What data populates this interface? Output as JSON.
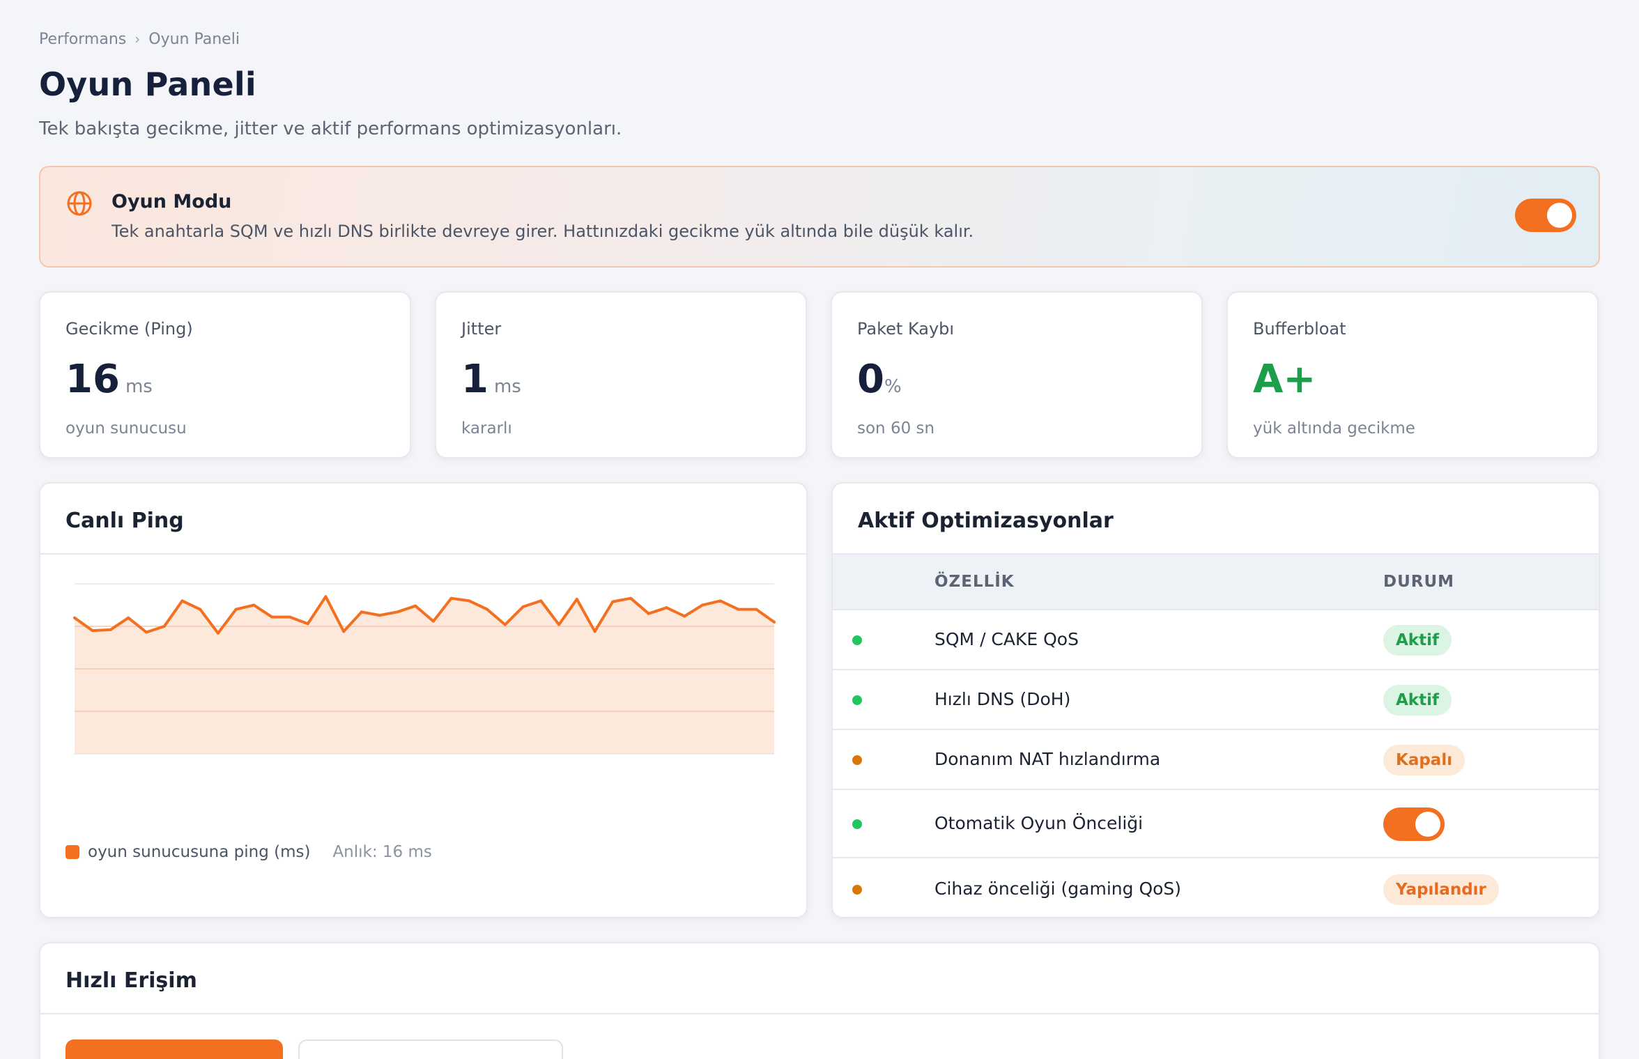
{
  "breadcrumb": {
    "parent": "Performans",
    "separator": "›",
    "current": "Oyun Paneli"
  },
  "page": {
    "title": "Oyun Paneli",
    "subtitle": "Tek bakışta gecikme, jitter ve aktif performans optimizasyonları."
  },
  "game_mode": {
    "icon": "globe-icon",
    "title": "Oyun Modu",
    "description": "Tek anahtarla SQM ve hızlı DNS birlikte devreye girer. Hattınızdaki gecikme yük altında bile düşük kalır.",
    "enabled": true
  },
  "stats": [
    {
      "label": "Gecikme (Ping)",
      "value": "16",
      "unit": "ms",
      "sub": "oyun sunucusu"
    },
    {
      "label": "Jitter",
      "value": "1",
      "unit": "ms",
      "sub": "kararlı"
    },
    {
      "label": "Paket Kaybı",
      "value": "0",
      "unit": "%",
      "sub": "son 60 sn"
    },
    {
      "label": "Bufferbloat",
      "value": "A+",
      "unit": "",
      "sub": "yük altında gecikme"
    }
  ],
  "live_ping": {
    "title": "Canlı Ping",
    "legend_label": "oyun sunucusuna ping (ms)",
    "current_text": "Anlık: 16 ms"
  },
  "chart_data": {
    "type": "area",
    "series": [
      {
        "name": "oyun sunucusuna ping (ms)",
        "values": [
          16,
          14.5,
          14.6,
          16,
          14.3,
          15,
          18,
          17,
          14.2,
          17,
          17.5,
          16.1,
          16.1,
          15.3,
          18.5,
          14.4,
          16.7,
          16.3,
          16.7,
          17.4,
          15.6,
          18.3,
          18,
          17,
          15.2,
          17.3,
          18,
          15.2,
          18.2,
          14.4,
          17.9,
          18.3,
          16.5,
          17.2,
          16.2,
          17.5,
          18,
          17,
          17,
          15.5
        ]
      }
    ],
    "ylim": [
      0,
      20
    ],
    "grid": true,
    "color": "#f37021",
    "fill": "#fde8dc"
  },
  "optimizations": {
    "title": "Aktif Optimizasyonlar",
    "columns": {
      "feature": "ÖZELLİK",
      "status": "DURUM"
    },
    "rows": [
      {
        "feature": "SQM / CAKE QoS",
        "status": "Aktif",
        "kind": "on",
        "dot": "#22c55e"
      },
      {
        "feature": "Hızlı DNS (DoH)",
        "status": "Aktif",
        "kind": "on",
        "dot": "#22c55e"
      },
      {
        "feature": "Donanım NAT hızlandırma",
        "status": "Kapalı",
        "kind": "off",
        "dot": "#d97706"
      },
      {
        "feature": "Otomatik Oyun Önceliği",
        "status": "",
        "kind": "toggle",
        "dot": "#22c55e"
      },
      {
        "feature": "Cihaz önceliği (gaming QoS)",
        "status": "Yapılandır",
        "kind": "cfg",
        "dot": "#d97706"
      }
    ]
  },
  "quick_access": {
    "title": "Hızlı Erişim"
  },
  "colors": {
    "accent": "#f37021",
    "success": "#1e9e4a",
    "warning": "#d97706"
  }
}
